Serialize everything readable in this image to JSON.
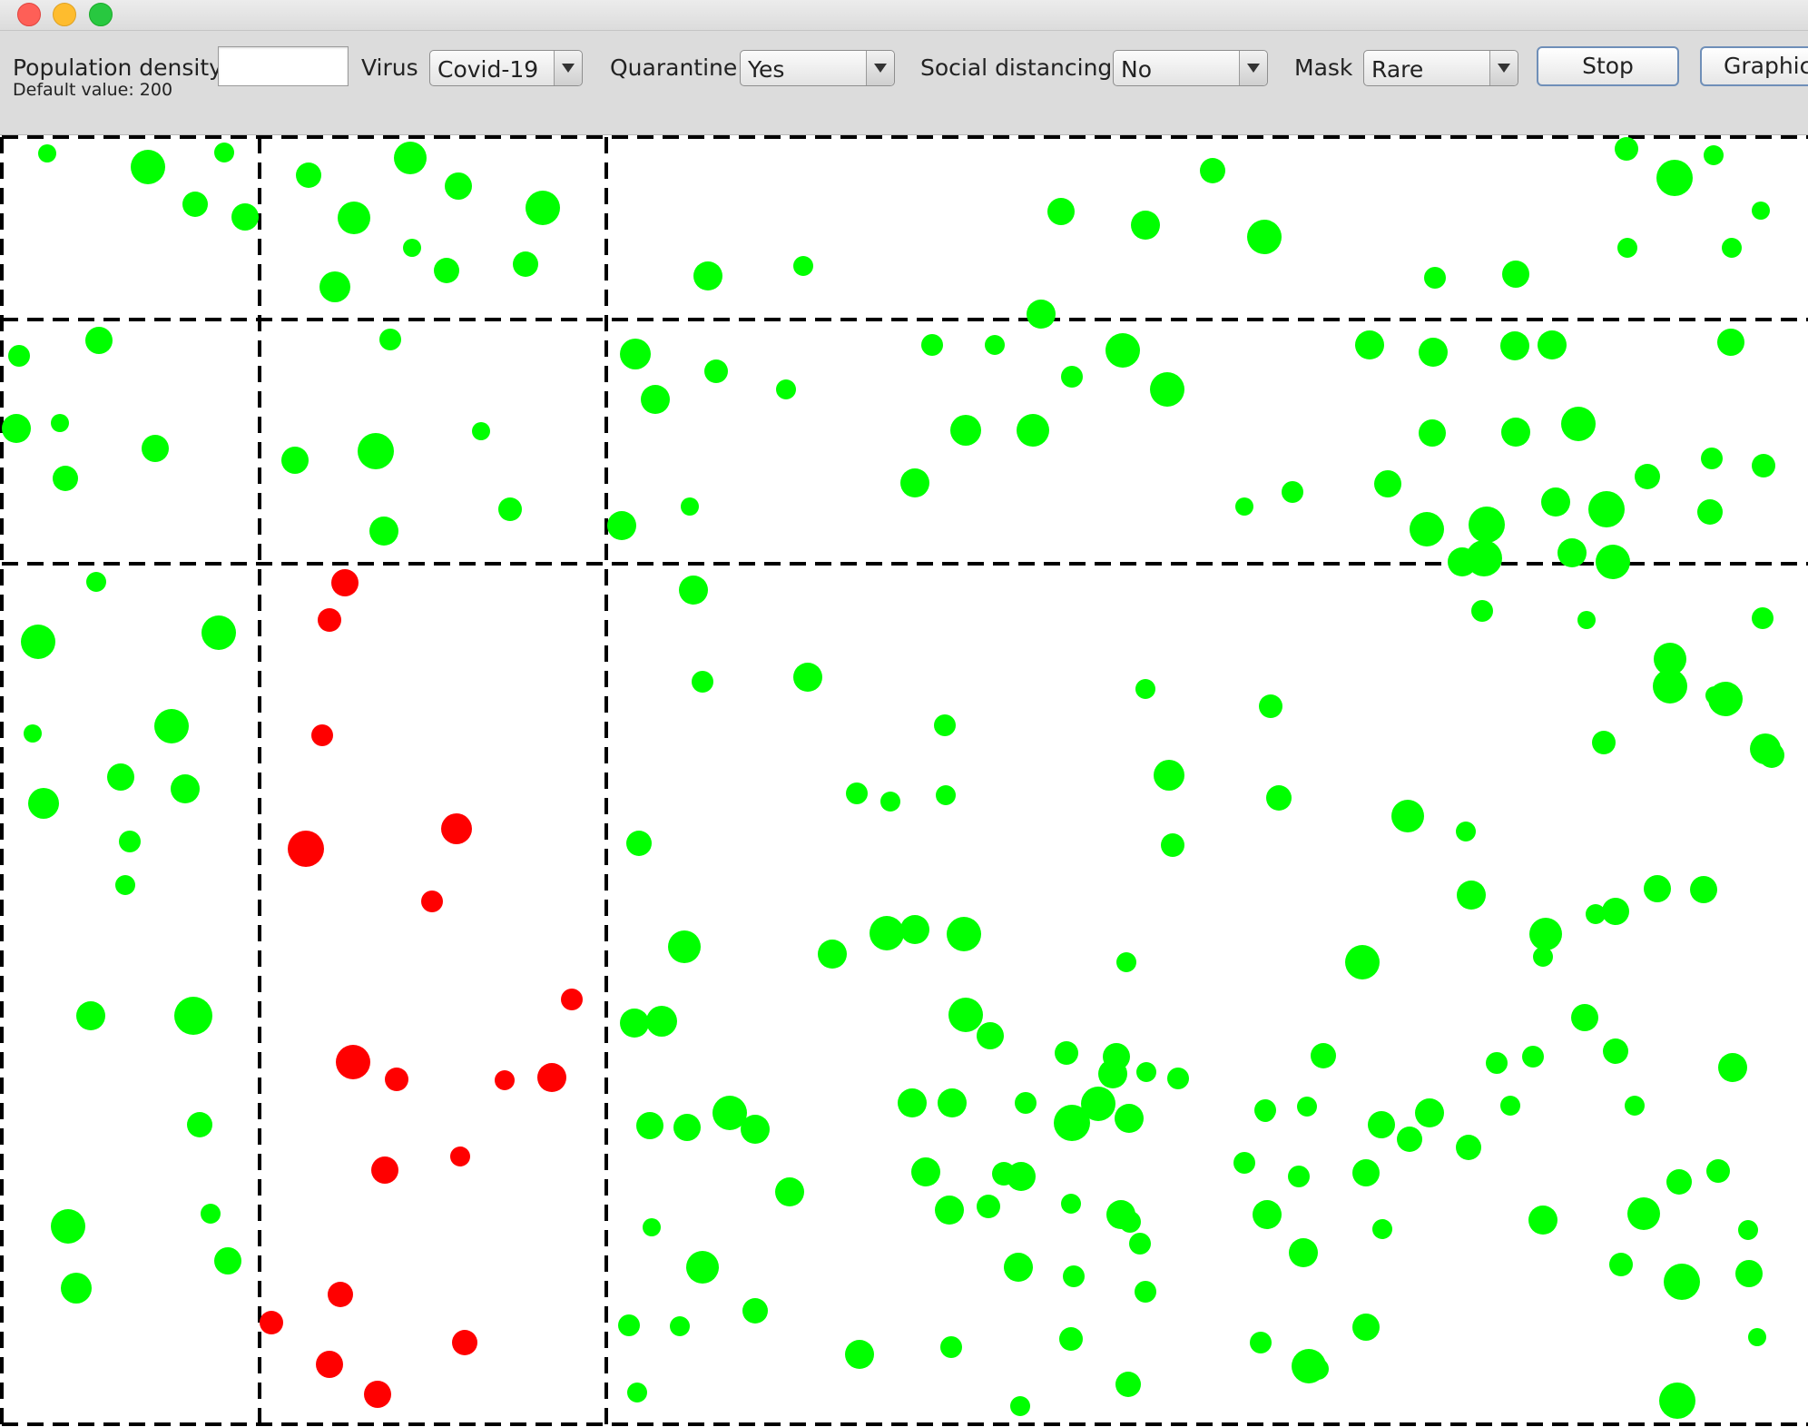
{
  "toolbar": {
    "population_density": {
      "label": "Population density",
      "default_hint": "Default value: 200",
      "value": ""
    },
    "virus": {
      "label": "Virus",
      "selected": "Covid-19"
    },
    "quarantine": {
      "label": "Quarantine",
      "selected": "Yes"
    },
    "social_distancing": {
      "label": "Social distancing",
      "selected": "No"
    },
    "mask": {
      "label": "Mask",
      "selected": "Rare"
    },
    "stop_label": "Stop",
    "graphics_label": "Graphic"
  },
  "simulation": {
    "colors": {
      "healthy": "#00ff00",
      "infected": "#ff0000"
    },
    "healthy_count": 208,
    "infected_count": 19
  }
}
